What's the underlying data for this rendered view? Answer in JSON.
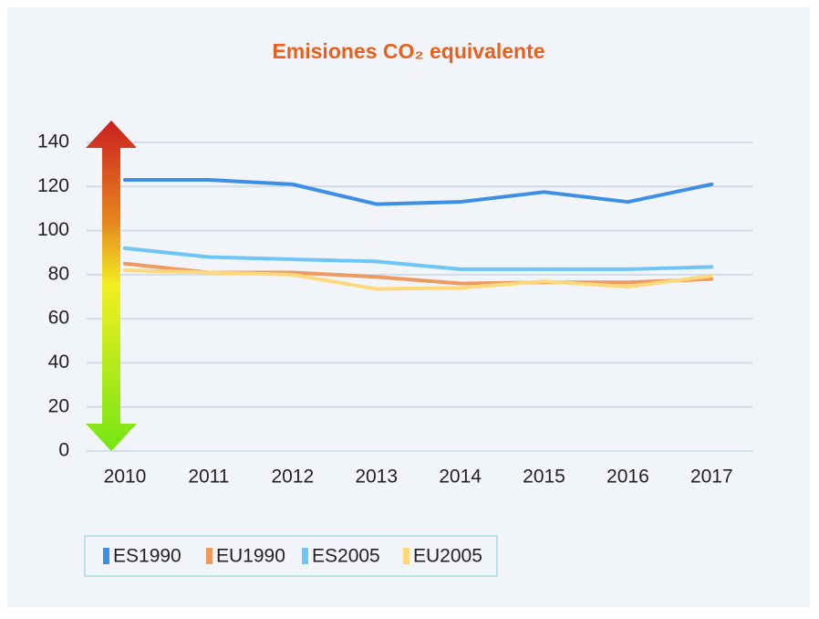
{
  "chart_data": {
    "type": "line",
    "title": "Emisiones CO₂ equivalente",
    "categories": [
      "2010",
      "2011",
      "2012",
      "2013",
      "2014",
      "2015",
      "2016",
      "2017"
    ],
    "series": [
      {
        "name": "ES1990",
        "color": "#3d8fe6",
        "values": [
          123,
          123,
          121,
          112,
          113,
          117.5,
          113,
          121
        ]
      },
      {
        "name": "EU1990",
        "color": "#ef9a5e",
        "values": [
          85,
          81,
          81,
          79,
          76,
          76.5,
          76.5,
          78
        ]
      },
      {
        "name": "ES2005",
        "color": "#6ec6f8",
        "values": [
          92,
          88,
          87,
          86,
          82.5,
          82.5,
          82.5,
          83.5
        ]
      },
      {
        "name": "EU2005",
        "color": "#fdd97c",
        "values": [
          82,
          81,
          80,
          73.5,
          74,
          77,
          74.5,
          79.5
        ]
      }
    ],
    "ylim": [
      0,
      140
    ],
    "yticks": [
      0,
      20,
      40,
      60,
      80,
      100,
      120,
      140
    ],
    "grid": true,
    "legend": "bottom"
  }
}
